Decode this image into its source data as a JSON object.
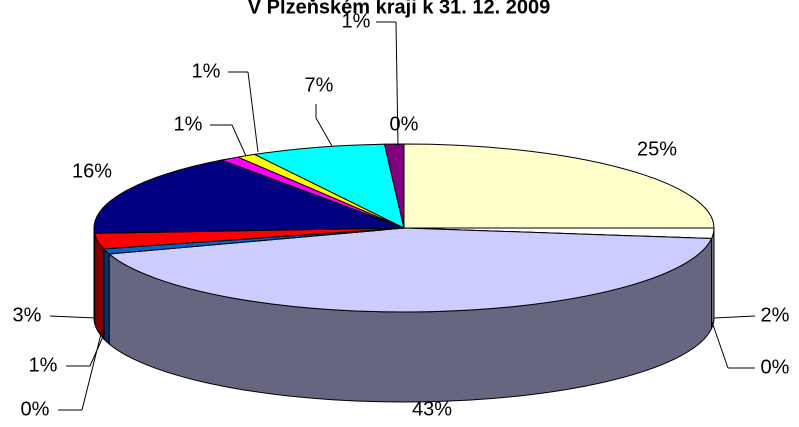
{
  "chart_data": {
    "type": "pie",
    "title": "V Plzeňském kraji k 31. 12. 2009",
    "values": [
      25,
      2,
      0,
      43,
      0,
      1,
      3,
      16,
      1,
      1,
      7,
      0,
      1
    ],
    "value_labels": [
      "25%",
      "2%",
      "0%",
      "43%",
      "0%",
      "1%",
      "3%",
      "16%",
      "1%",
      "1%",
      "7%",
      "0%",
      "1%"
    ],
    "colors": [
      "#FFFFCC",
      "#FFFFFF",
      "#993366",
      "#CCCCFF",
      "#660066",
      "#0066CC",
      "#FF0000",
      "#000080",
      "#FF00FF",
      "#FFFF00",
      "#00FFFF",
      "#800000",
      "#800080"
    ]
  }
}
